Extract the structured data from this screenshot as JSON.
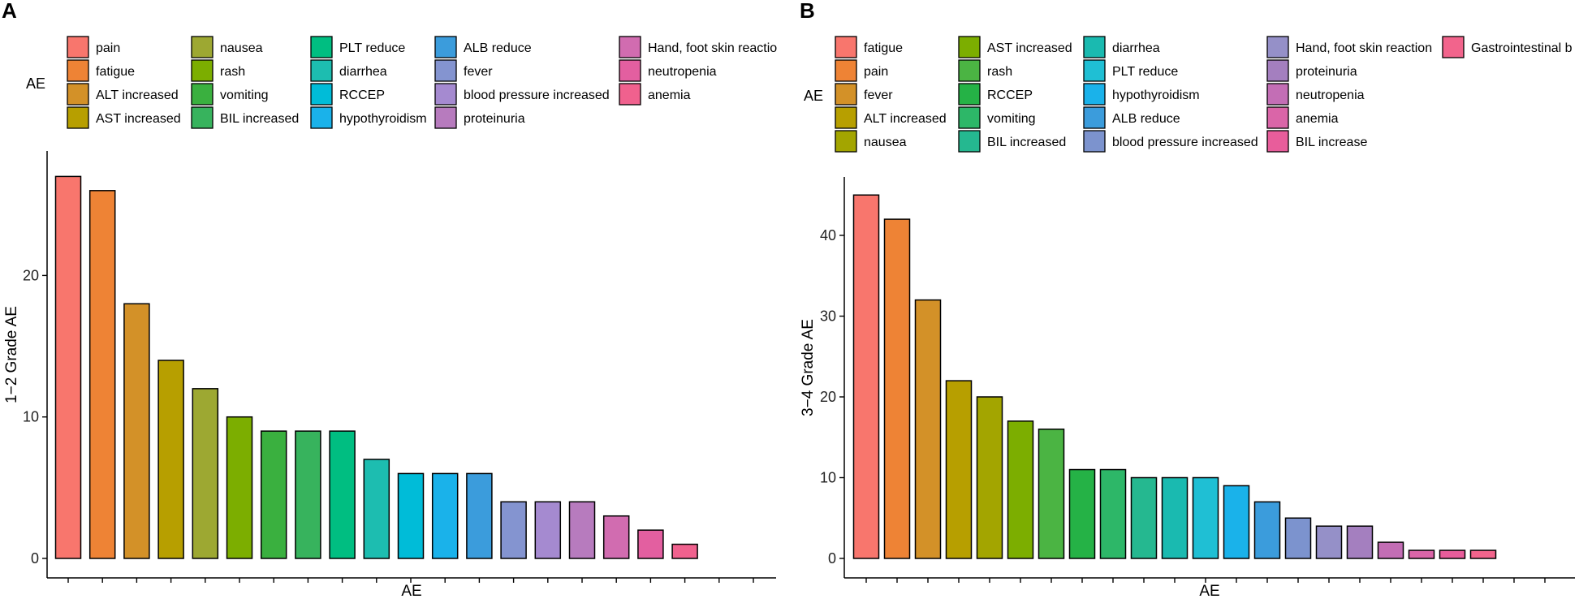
{
  "chart_data": [
    {
      "panel": "A",
      "type": "bar",
      "title": "",
      "xlabel": "AE",
      "ylabel": "1−2 Grade AE",
      "ylim": [
        0,
        28
      ],
      "yticks": [
        0,
        10,
        20
      ],
      "legend_title": "AE",
      "legend_position": "top",
      "categories": [
        "pain",
        "fatigue",
        "ALT increased",
        "AST increased",
        "nausea",
        "rash",
        "vomiting",
        "BIL increased",
        "PLT reduce",
        "diarrhea",
        "RCCEP",
        "hypothyroidism",
        "ALB reduce",
        "fever",
        "blood pressure increased",
        "proteinuria",
        "Hand, foot skin reaction",
        "neutropenia",
        "anemia"
      ],
      "legend_labels": [
        "pain",
        "fatigue",
        "ALT increased",
        "AST increased",
        "nausea",
        "rash",
        "vomiting",
        "BIL increased",
        "PLT reduce",
        "diarrhea",
        "RCCEP",
        "hypothyroidism",
        "ALB reduce",
        "fever",
        "blood pressure increased",
        "proteinuria",
        "Hand, foot skin reactio",
        "neutropenia",
        "anemia"
      ],
      "values": [
        27,
        26,
        18,
        14,
        12,
        10,
        9,
        9,
        9,
        7,
        6,
        6,
        6,
        4,
        4,
        4,
        3,
        2,
        1
      ],
      "colors": [
        "#F8766D",
        "#EE8335",
        "#D39128",
        "#B79F00",
        "#9DA832",
        "#7CAE00",
        "#3AB03F",
        "#37B35D",
        "#00BE81",
        "#1DBDB0",
        "#00BCD8",
        "#1AB2EA",
        "#3B9CDC",
        "#8494D0",
        "#A58AD0",
        "#B77BBE",
        "#D16CB0",
        "#E35FA0",
        "#F0618E"
      ],
      "n_xticks": 21
    },
    {
      "panel": "B",
      "type": "bar",
      "title": "",
      "xlabel": "AE",
      "ylabel": "3−4 Grade AE",
      "ylim": [
        0,
        47
      ],
      "yticks": [
        0,
        10,
        20,
        30,
        40
      ],
      "legend_title": "AE",
      "legend_position": "top",
      "categories": [
        "fatigue",
        "pain",
        "fever",
        "ALT increased",
        "nausea",
        "AST increased",
        "rash",
        "RCCEP",
        "vomiting",
        "BIL increased",
        "diarrhea",
        "PLT reduce",
        "hypothyroidism",
        "ALB reduce",
        "blood pressure increased",
        "Hand, foot skin reaction",
        "proteinuria",
        "neutropenia",
        "anemia",
        "BIL increase",
        "Gastrointestinal bleeding"
      ],
      "legend_labels": [
        "fatigue",
        "pain",
        "fever",
        "ALT increased",
        "nausea",
        "AST increased",
        "rash",
        "RCCEP",
        "vomiting",
        "BIL increased",
        "diarrhea",
        "PLT reduce",
        "hypothyroidism",
        "ALB reduce",
        "blood pressure increased",
        "Hand, foot skin reaction",
        "proteinuria",
        "neutropenia",
        "anemia",
        "BIL increase",
        "Gastrointestinal b"
      ],
      "values": [
        45,
        42,
        32,
        22,
        20,
        17,
        16,
        11,
        11,
        10,
        10,
        10,
        9,
        7,
        5,
        4,
        4,
        2,
        1,
        1,
        1
      ],
      "colors": [
        "#F8766D",
        "#EE8335",
        "#D39128",
        "#B79F00",
        "#A3A500",
        "#7CAE00",
        "#4BB443",
        "#25B246",
        "#2DB768",
        "#25B890",
        "#1ABAB0",
        "#1FBFD4",
        "#1AB2EA",
        "#3B9CDC",
        "#7C93CE",
        "#9590C8",
        "#A47FBF",
        "#C36EB5",
        "#DA65A8",
        "#E85D9B",
        "#F2648C"
      ],
      "n_xticks": 23
    }
  ],
  "panels": {
    "a_label": "A",
    "b_label": "B"
  }
}
